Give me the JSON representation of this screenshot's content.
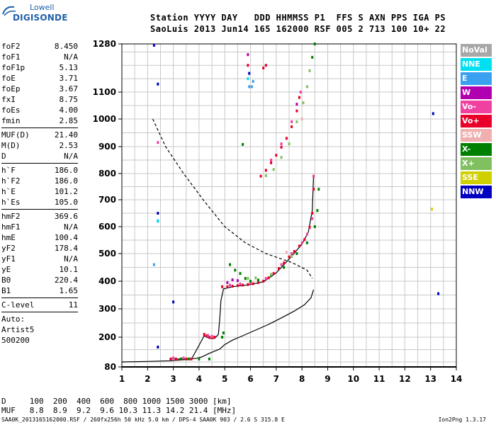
{
  "logo": {
    "line1": "Lowell",
    "line2": "DIGISONDE"
  },
  "header": {
    "line1": "Station YYYY DAY   DDD HHMMSS P1  FFS S AXN PPS IGA PS",
    "line2": "SaoLuis 2013 Jun14 165 162000 RSF 005 2 713 100 10+ 22"
  },
  "params": [
    {
      "group": [
        {
          "label": "foF2",
          "value": "8.450"
        },
        {
          "label": "foF1",
          "value": "N/A"
        },
        {
          "label": "foF1p",
          "value": "5.13"
        },
        {
          "label": "foE",
          "value": "3.71"
        },
        {
          "label": "foEp",
          "value": "3.67"
        },
        {
          "label": "fxI",
          "value": "8.75"
        },
        {
          "label": "foEs",
          "value": "4.00"
        },
        {
          "label": "fmin",
          "value": "2.85"
        }
      ]
    },
    {
      "group": [
        {
          "label": "MUF(D)",
          "value": "21.40"
        },
        {
          "label": "M(D)",
          "value": "2.53"
        },
        {
          "label": "D",
          "value": "N/A"
        }
      ]
    },
    {
      "group": [
        {
          "label": "h`F",
          "value": "186.0"
        },
        {
          "label": "h`F2",
          "value": "186.0"
        },
        {
          "label": "h`E",
          "value": "101.2"
        },
        {
          "label": "h`Es",
          "value": "105.0"
        }
      ]
    },
    {
      "group": [
        {
          "label": "hmF2",
          "value": "369.6"
        },
        {
          "label": "hmF1",
          "value": "N/A"
        },
        {
          "label": "hmE",
          "value": "100.4"
        },
        {
          "label": "yF2",
          "value": "178.4"
        },
        {
          "label": "yF1",
          "value": "N/A"
        },
        {
          "label": "yE",
          "value": "10.1"
        },
        {
          "label": "B0",
          "value": "220.4"
        },
        {
          "label": "B1",
          "value": "1.65"
        }
      ]
    },
    {
      "group": [
        {
          "label": "C-level",
          "value": "11"
        }
      ]
    }
  ],
  "auto": [
    "Auto:",
    "Artist5",
    "500200"
  ],
  "legend": [
    {
      "label": "NoVal",
      "color": "#a8a8a8"
    },
    {
      "label": "NNE",
      "color": "#00e0f0"
    },
    {
      "label": "E",
      "color": "#3aa0f0"
    },
    {
      "label": "W",
      "color": "#b000b0"
    },
    {
      "label": "Vo-",
      "color": "#f040a0"
    },
    {
      "label": "Vo+",
      "color": "#e8002a"
    },
    {
      "label": "SSW",
      "color": "#f0b0b0"
    },
    {
      "label": "X-",
      "color": "#008000"
    },
    {
      "label": "X+",
      "color": "#80c060"
    },
    {
      "label": "SSE",
      "color": "#d0d000"
    },
    {
      "label": "NNW",
      "color": "#0000c0"
    }
  ],
  "bottom": {
    "line1": "D     100  200  400  600  800 1000 1500 3000 [km]",
    "line2": "MUF   8.8  8.9  9.2  9.6 10.3 11.3 14.2 21.4 [MHz]"
  },
  "footer": {
    "left": "SAA0K_2013165162000.RSF / 260fx256h 50 kHz 5.0 km / DPS-4 SAA0K 903 / 2.6 S 315.8 E",
    "right": "Ion2Png 1.3.17"
  },
  "chart_data": {
    "type": "scatter",
    "x_ticks": [
      1,
      2,
      3,
      4,
      5,
      6,
      7,
      8,
      9,
      10,
      11,
      12,
      13,
      14
    ],
    "y_ticks": [
      80,
      200,
      300,
      400,
      500,
      600,
      700,
      800,
      900,
      1000,
      1100,
      1280
    ],
    "xlim": [
      1,
      14
    ],
    "ylim": [
      80,
      1280
    ],
    "grid": true,
    "legend_position": "right",
    "series": [
      {
        "name": "Vo+",
        "color": "#e8002a",
        "points": [
          [
            2.9,
            112
          ],
          [
            3.1,
            112
          ],
          [
            3.3,
            112
          ],
          [
            3.5,
            112
          ],
          [
            3.7,
            112
          ],
          [
            4.2,
            210
          ],
          [
            4.3,
            205
          ],
          [
            4.4,
            200
          ],
          [
            4.5,
            198
          ],
          [
            4.6,
            200
          ],
          [
            4.9,
            380
          ],
          [
            5.1,
            380
          ],
          [
            5.3,
            382
          ],
          [
            5.5,
            384
          ],
          [
            5.7,
            386
          ],
          [
            5.9,
            388
          ],
          [
            6.1,
            391
          ],
          [
            6.3,
            395
          ],
          [
            6.5,
            400
          ],
          [
            6.7,
            412
          ],
          [
            6.9,
            428
          ],
          [
            7.1,
            446
          ],
          [
            7.3,
            466
          ],
          [
            7.5,
            488
          ],
          [
            7.7,
            508
          ],
          [
            7.9,
            528
          ],
          [
            8.1,
            552
          ],
          [
            8.3,
            598
          ],
          [
            8.4,
            650
          ],
          [
            8.45,
            740
          ],
          [
            6.4,
            790
          ],
          [
            6.6,
            812
          ],
          [
            6.8,
            840
          ],
          [
            7.0,
            868
          ],
          [
            7.2,
            898
          ],
          [
            7.4,
            930
          ],
          [
            7.6,
            972
          ],
          [
            7.8,
            1030
          ],
          [
            7.9,
            1080
          ],
          [
            6.5,
            1190
          ],
          [
            6.6,
            1200
          ],
          [
            5.9,
            1200
          ]
        ]
      },
      {
        "name": "Vo-",
        "color": "#f040a0",
        "points": [
          [
            3.0,
            116
          ],
          [
            3.4,
            116
          ],
          [
            4.35,
            206
          ],
          [
            4.5,
            203
          ],
          [
            5.2,
            386
          ],
          [
            5.6,
            390
          ],
          [
            6.0,
            394
          ],
          [
            6.6,
            410
          ],
          [
            7.2,
            460
          ],
          [
            7.6,
            500
          ],
          [
            8.0,
            540
          ],
          [
            8.2,
            572
          ],
          [
            8.4,
            630
          ],
          [
            8.45,
            790
          ],
          [
            6.8,
            850
          ],
          [
            7.2,
            910
          ],
          [
            7.6,
            990
          ],
          [
            7.95,
            1100
          ],
          [
            2.4,
            915
          ]
        ]
      },
      {
        "name": "X-",
        "color": "#008000",
        "points": [
          [
            3.3,
            112
          ],
          [
            3.6,
            112
          ],
          [
            4.0,
            112
          ],
          [
            4.4,
            112
          ],
          [
            4.9,
            200
          ],
          [
            4.95,
            215
          ],
          [
            5.2,
            460
          ],
          [
            5.4,
            440
          ],
          [
            5.6,
            428
          ],
          [
            5.8,
            410
          ],
          [
            6.0,
            400
          ],
          [
            6.3,
            404
          ],
          [
            6.8,
            420
          ],
          [
            7.3,
            450
          ],
          [
            7.8,
            500
          ],
          [
            8.2,
            540
          ],
          [
            8.5,
            600
          ],
          [
            8.6,
            660
          ],
          [
            8.65,
            740
          ],
          [
            8.5,
            1280
          ],
          [
            8.4,
            1230
          ],
          [
            5.7,
            908
          ]
        ]
      },
      {
        "name": "X+",
        "color": "#80c060",
        "points": [
          [
            6.6,
            792
          ],
          [
            6.9,
            815
          ],
          [
            7.2,
            860
          ],
          [
            7.5,
            910
          ],
          [
            7.8,
            990
          ],
          [
            8.05,
            1060
          ],
          [
            8.2,
            1120
          ],
          [
            8.3,
            1180
          ],
          [
            5.9,
            410
          ],
          [
            6.2,
            412
          ],
          [
            6.8,
            425
          ],
          [
            7.6,
            490
          ]
        ]
      },
      {
        "name": "W",
        "color": "#b000b0",
        "points": [
          [
            5.1,
            395
          ],
          [
            5.3,
            405
          ],
          [
            5.5,
            402
          ],
          [
            7.8,
            1055
          ],
          [
            5.9,
            1240
          ]
        ]
      },
      {
        "name": "E",
        "color": "#3aa0f0",
        "points": [
          [
            5.95,
            1120
          ],
          [
            6.05,
            1120
          ],
          [
            6.1,
            1140
          ],
          [
            2.4,
            620
          ],
          [
            2.25,
            460
          ]
        ]
      },
      {
        "name": "NNE",
        "color": "#00e0f0",
        "points": [
          [
            5.9,
            1150
          ],
          [
            2.4,
            622
          ]
        ]
      },
      {
        "name": "SSW",
        "color": "#f0b0b0",
        "points": [
          [
            8.0,
            1000
          ],
          [
            7.4,
            505
          ]
        ]
      },
      {
        "name": "SSE",
        "color": "#d0d000",
        "points": [
          [
            13.05,
            665
          ]
        ]
      },
      {
        "name": "NNW",
        "color": "#0000c0",
        "points": [
          [
            2.25,
            1275
          ],
          [
            2.4,
            1130
          ],
          [
            2.4,
            650
          ],
          [
            3.0,
            325
          ],
          [
            2.4,
            160
          ],
          [
            13.1,
            1020
          ],
          [
            13.3,
            355
          ],
          [
            5.95,
            1170
          ]
        ]
      }
    ],
    "lines": [
      {
        "name": "profile",
        "style": "solid",
        "color": "#000000",
        "points": [
          [
            1.0,
            100
          ],
          [
            2.0,
            102
          ],
          [
            2.9,
            105
          ],
          [
            3.5,
            110
          ],
          [
            3.9,
            115
          ],
          [
            4.1,
            120
          ],
          [
            4.4,
            135
          ],
          [
            4.8,
            152
          ],
          [
            5.0,
            170
          ],
          [
            5.3,
            188
          ],
          [
            5.7,
            205
          ],
          [
            6.2,
            225
          ],
          [
            6.7,
            245
          ],
          [
            7.2,
            268
          ],
          [
            7.7,
            292
          ],
          [
            8.1,
            315
          ],
          [
            8.35,
            340
          ],
          [
            8.45,
            369.6
          ]
        ]
      },
      {
        "name": "virtual_fit",
        "style": "solid",
        "color": "#000000",
        "points": [
          [
            2.85,
            112
          ],
          [
            3.71,
            112
          ],
          [
            4.2,
            205
          ],
          [
            4.4,
            195
          ],
          [
            4.6,
            195
          ],
          [
            4.75,
            210
          ],
          [
            4.8,
            260
          ],
          [
            4.85,
            330
          ],
          [
            4.95,
            372
          ],
          [
            5.3,
            380
          ],
          [
            6.0,
            388
          ],
          [
            6.5,
            398
          ],
          [
            7.0,
            430
          ],
          [
            7.5,
            480
          ],
          [
            8.0,
            535
          ],
          [
            8.25,
            580
          ],
          [
            8.4,
            660
          ],
          [
            8.45,
            790
          ]
        ]
      },
      {
        "name": "muf_curve",
        "style": "dashed",
        "color": "#000000",
        "points": [
          [
            2.2,
            1000
          ],
          [
            2.7,
            900
          ],
          [
            3.4,
            800
          ],
          [
            4.2,
            695
          ],
          [
            5.0,
            600
          ],
          [
            5.8,
            540
          ],
          [
            6.6,
            500
          ],
          [
            7.6,
            468
          ],
          [
            8.2,
            440
          ],
          [
            8.4,
            410
          ]
        ]
      }
    ]
  }
}
